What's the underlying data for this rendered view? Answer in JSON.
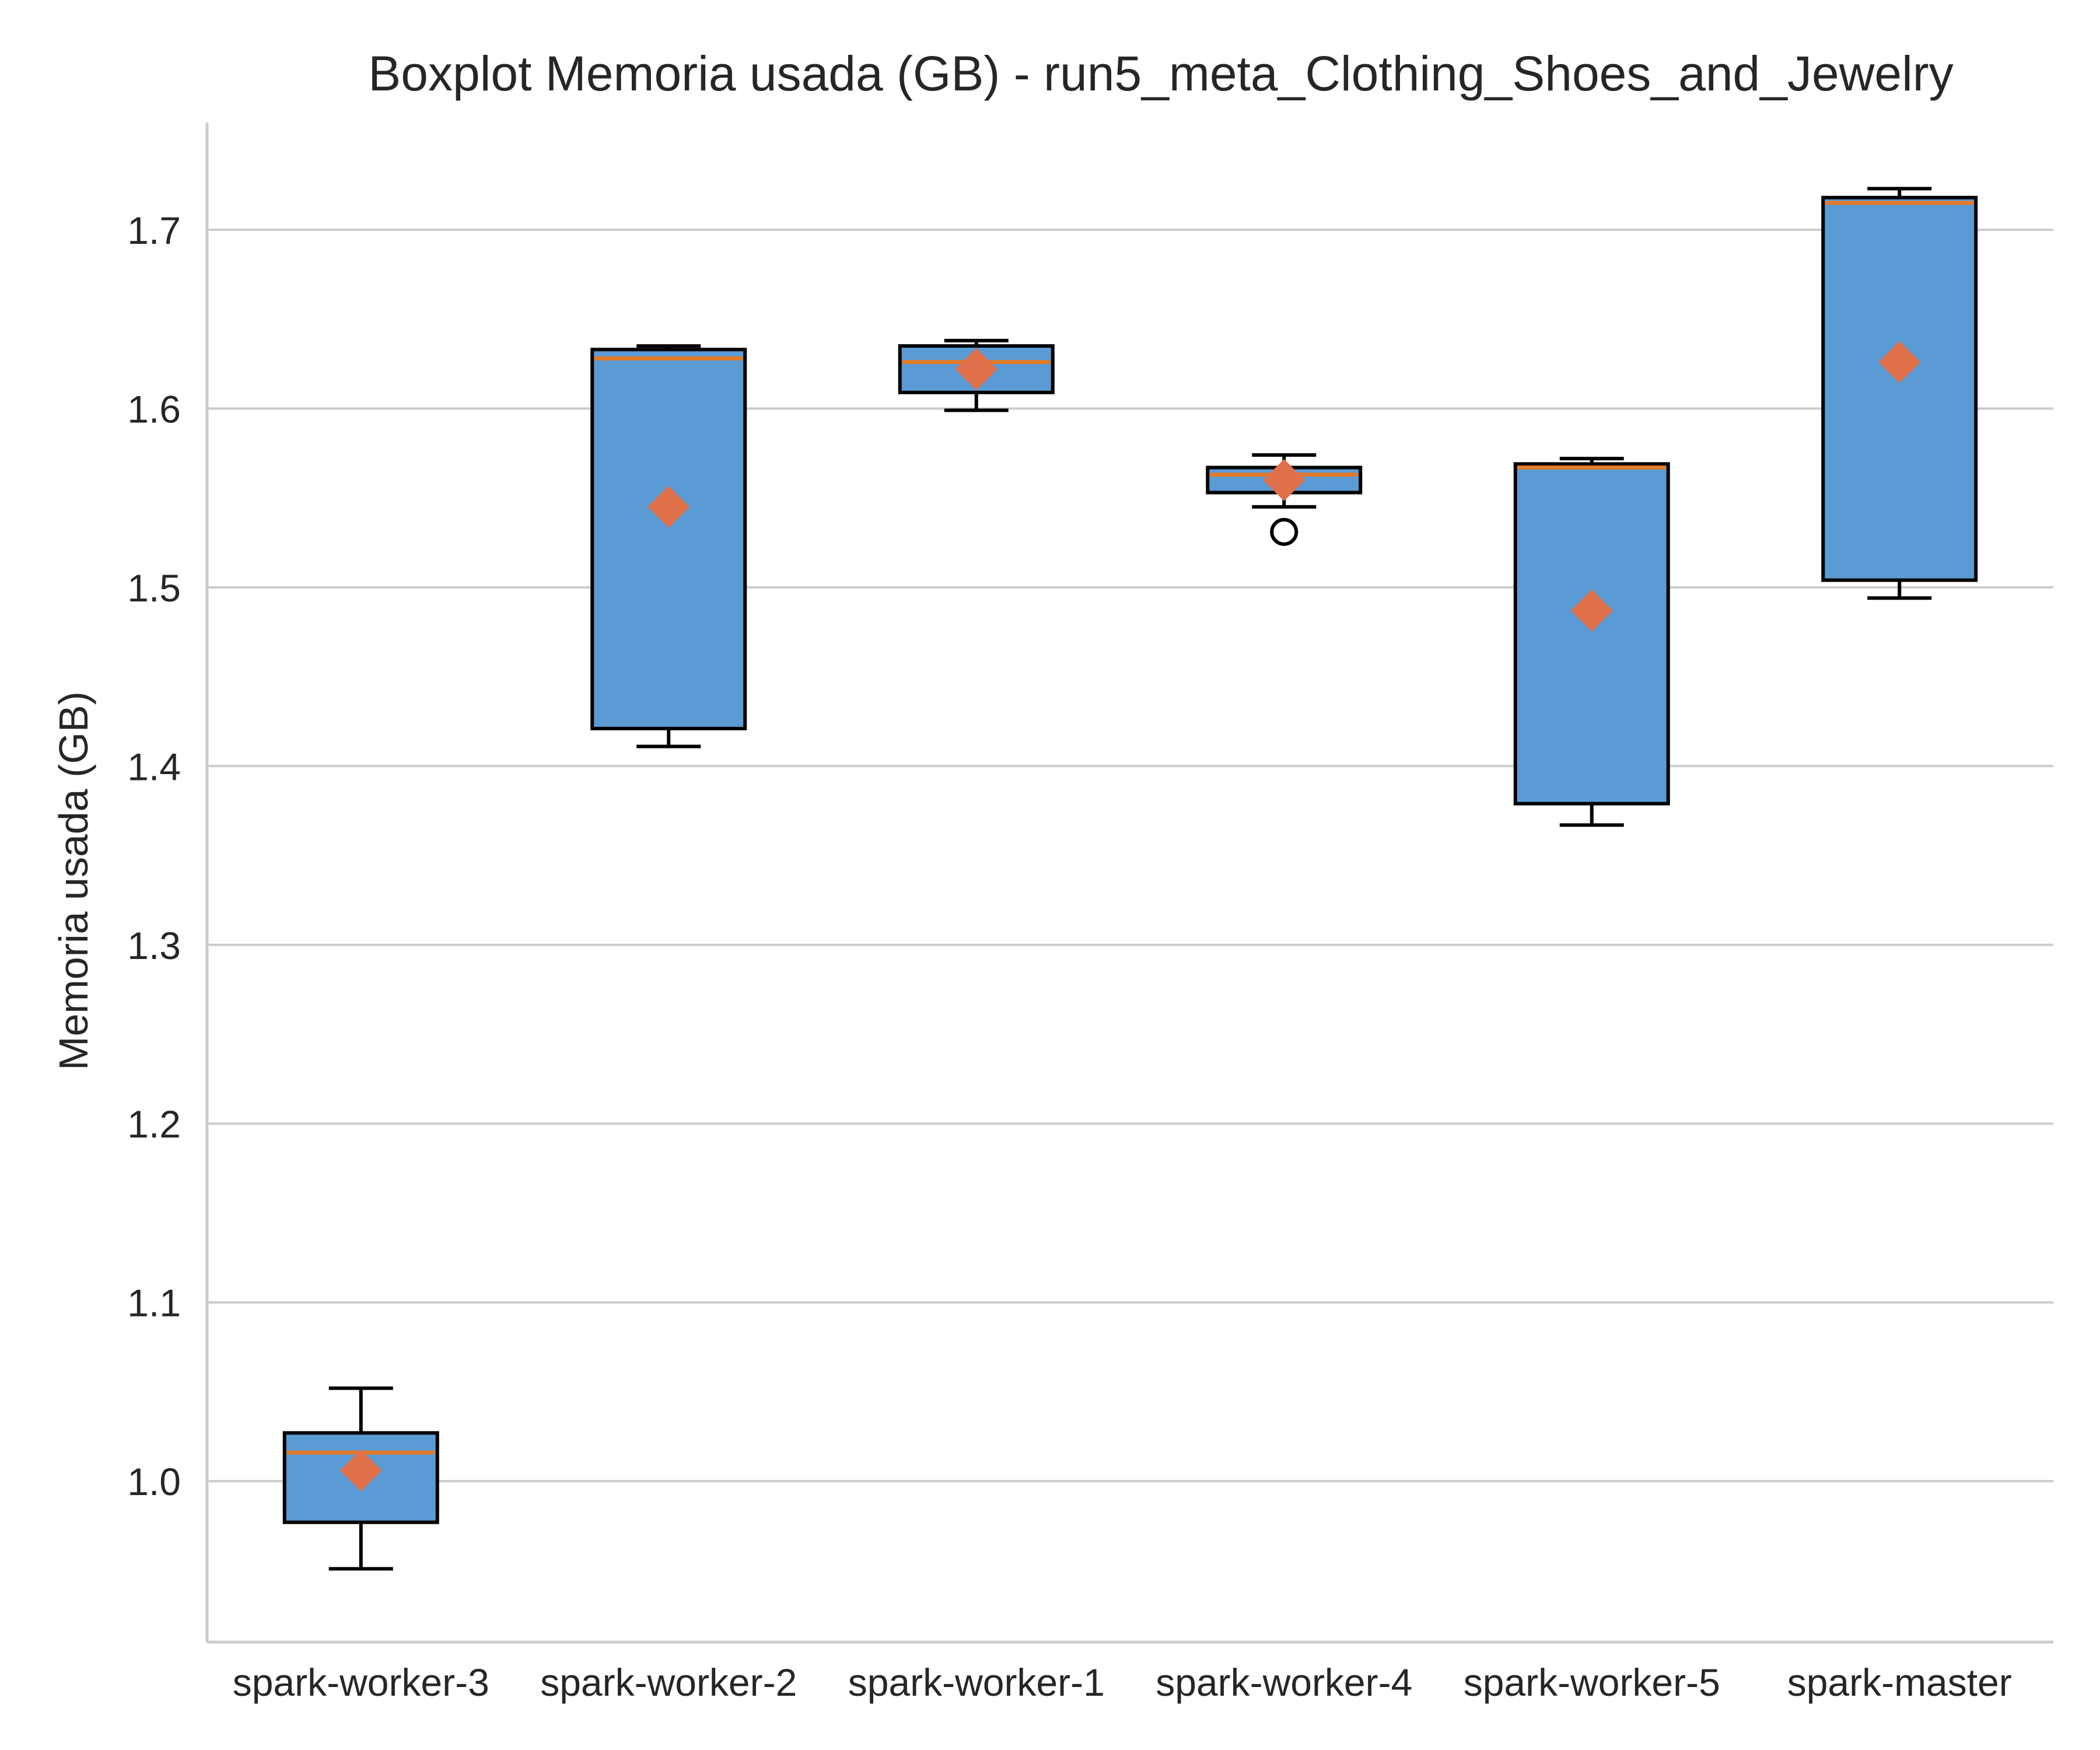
{
  "colors": {
    "box_fill": "#5b9bd5",
    "median": "#e07b2a",
    "mean_marker": "#e0704a",
    "grid": "#cccccc",
    "text": "#262626"
  },
  "chart_data": {
    "type": "box",
    "title": "Boxplot Memoria usada (GB) - run5_meta_Clothing_Shoes_and_Jewelry",
    "xlabel": "",
    "ylabel": "Memoria usada (GB)",
    "ylim": [
      0.91,
      1.76
    ],
    "yticks": [
      1.0,
      1.1,
      1.2,
      1.3,
      1.4,
      1.5,
      1.6,
      1.7
    ],
    "ytick_labels": [
      "1.0",
      "1.1",
      "1.2",
      "1.3",
      "1.4",
      "1.5",
      "1.6",
      "1.7"
    ],
    "grid": "horizontal",
    "mean_marker": "diamond",
    "categories": [
      "spark-worker-3",
      "spark-worker-2",
      "spark-worker-1",
      "spark-worker-4",
      "spark-worker-5",
      "spark-master"
    ],
    "boxes": [
      {
        "name": "spark-worker-3",
        "whisker_low": 0.951,
        "q1": 0.977,
        "median": 1.016,
        "q3": 1.027,
        "whisker_high": 1.052,
        "mean": 1.006,
        "outliers": []
      },
      {
        "name": "spark-worker-2",
        "whisker_low": 1.411,
        "q1": 1.421,
        "median": 1.628,
        "q3": 1.633,
        "whisker_high": 1.635,
        "mean": 1.545,
        "outliers": []
      },
      {
        "name": "spark-worker-1",
        "whisker_low": 1.599,
        "q1": 1.609,
        "median": 1.626,
        "q3": 1.635,
        "whisker_high": 1.638,
        "mean": 1.622,
        "outliers": []
      },
      {
        "name": "spark-worker-4",
        "whisker_low": 1.545,
        "q1": 1.553,
        "median": 1.563,
        "q3": 1.567,
        "whisker_high": 1.574,
        "mean": 1.56,
        "outliers": [
          1.531
        ]
      },
      {
        "name": "spark-worker-5",
        "whisker_low": 1.367,
        "q1": 1.379,
        "median": 1.567,
        "q3": 1.569,
        "whisker_high": 1.572,
        "mean": 1.487,
        "outliers": []
      },
      {
        "name": "spark-master",
        "whisker_low": 1.494,
        "q1": 1.504,
        "median": 1.715,
        "q3": 1.718,
        "whisker_high": 1.723,
        "mean": 1.626,
        "outliers": []
      }
    ]
  }
}
